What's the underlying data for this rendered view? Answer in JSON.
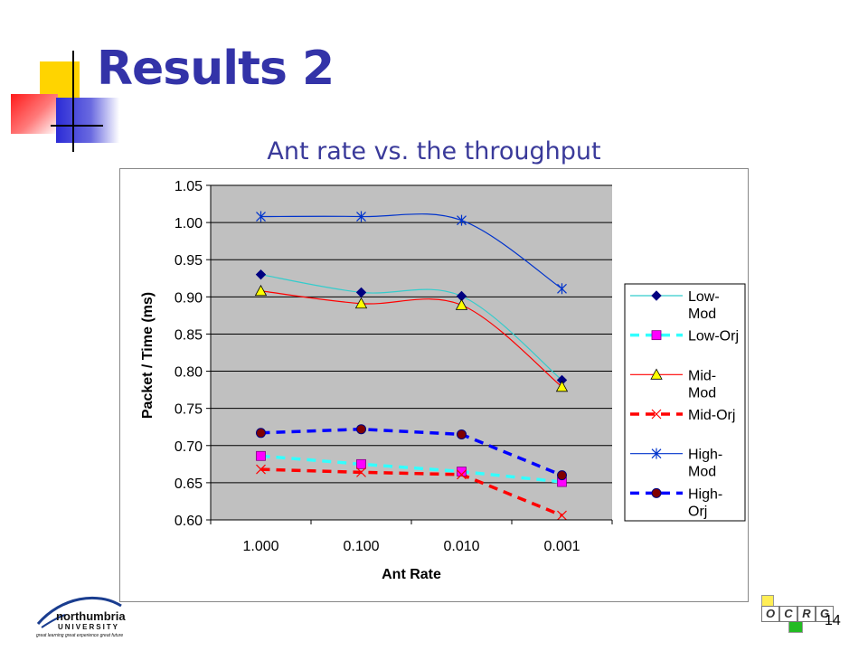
{
  "slide": {
    "title": "Results 2",
    "number": "14",
    "university_name": "northumbria",
    "university_sub": "UNIVERSITY",
    "university_tagline": "great learning great experience great future",
    "ocrg_letters": [
      "O",
      "C",
      "R",
      "G"
    ]
  },
  "chart_data": {
    "type": "line",
    "title": "Ant rate vs. the throughput",
    "xlabel": "Ant Rate",
    "ylabel": "Packet / Time (ms)",
    "categories": [
      "1.000",
      "0.100",
      "0.010",
      "0.001"
    ],
    "ylim": [
      0.6,
      1.05
    ],
    "yticks": [
      "0.60",
      "0.65",
      "0.70",
      "0.75",
      "0.80",
      "0.85",
      "0.90",
      "0.95",
      "1.00",
      "1.05"
    ],
    "grid": true,
    "legend_position": "right",
    "plot_background": "#c0c0c0",
    "series": [
      {
        "name": "Low-Mod",
        "legend_lines": [
          "Low-",
          "Mod"
        ],
        "values": [
          0.93,
          0.906,
          0.901,
          0.788
        ],
        "color": "#33cccc",
        "marker_fill": "#000080",
        "marker": "diamond",
        "dash": false,
        "smooth": true
      },
      {
        "name": "Low-Orj",
        "legend_lines": [
          "Low-Orj"
        ],
        "values": [
          0.686,
          0.675,
          0.665,
          0.651
        ],
        "color": "#33ffff",
        "marker_fill": "#ff00ff",
        "marker": "square",
        "dash": true,
        "smooth": false
      },
      {
        "name": "Mid-Mod",
        "legend_lines": [
          "Mid-",
          "Mod"
        ],
        "values": [
          0.908,
          0.891,
          0.889,
          0.779
        ],
        "color": "#ff0000",
        "marker_fill": "#ffff00",
        "marker": "triangle",
        "dash": false,
        "smooth": true
      },
      {
        "name": "Mid-Orj",
        "legend_lines": [
          "Mid-Orj"
        ],
        "values": [
          0.668,
          0.664,
          0.661,
          0.606
        ],
        "color": "#ff0000",
        "marker_fill": "#ff0000",
        "marker": "x",
        "dash": true,
        "smooth": false
      },
      {
        "name": "High-Mod",
        "legend_lines": [
          "High-",
          "Mod"
        ],
        "values": [
          1.008,
          1.008,
          1.003,
          0.911
        ],
        "color": "#0033cc",
        "marker_fill": "#0033cc",
        "marker": "star",
        "dash": false,
        "smooth": true
      },
      {
        "name": "High-Orj",
        "legend_lines": [
          "High-",
          "Orj"
        ],
        "values": [
          0.717,
          0.722,
          0.715,
          0.66
        ],
        "color": "#0000ff",
        "marker_fill": "#800000",
        "marker": "circle",
        "dash": true,
        "smooth": false
      }
    ]
  }
}
